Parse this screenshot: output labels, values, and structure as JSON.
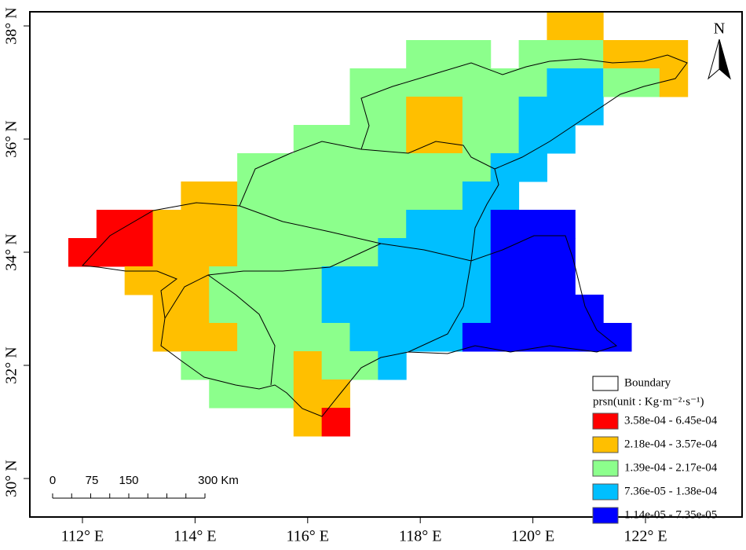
{
  "map": {
    "x_labels": [
      "112° E",
      "114° E",
      "116° E",
      "118° E",
      "120° E",
      "122° E"
    ],
    "y_labels": [
      "38° N",
      "36° N",
      "34° N",
      "32° N",
      "30° N"
    ],
    "north": "N",
    "scale_labels": [
      "0",
      "75",
      "150",
      "300 Km"
    ],
    "legend": {
      "boundary": "Boundary",
      "title": "prsn(unit : Kg·m⁻²·s⁻¹)",
      "classes": [
        {
          "label": "3.58e-04 - 6.45e-04",
          "color": "#ff0000"
        },
        {
          "label": "2.18e-04 - 3.57e-04",
          "color": "#ffbf00"
        },
        {
          "label": "1.39e-04 - 2.17e-04",
          "color": "#8cff8c"
        },
        {
          "label": "7.36e-05 - 1.38e-04",
          "color": "#00bfff"
        },
        {
          "label": "1.14e-05 - 7.35e-05",
          "color": "#0000ff"
        }
      ]
    }
  }
}
